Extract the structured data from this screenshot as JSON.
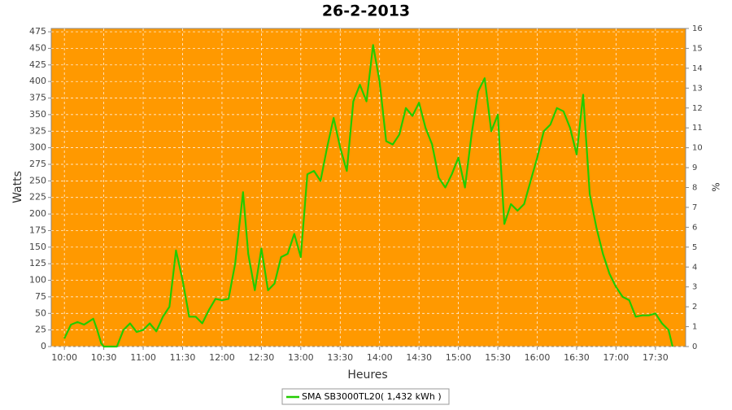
{
  "chart_data": {
    "type": "line",
    "title": "26-2-2013",
    "x_label": "Heures",
    "y_label": "Watts",
    "y2_label": "%",
    "x": [
      "10:00",
      "10:05",
      "10:10",
      "10:15",
      "10:22",
      "10:25",
      "10:28",
      "10:30",
      "10:35",
      "10:40",
      "10:45",
      "10:50",
      "10:55",
      "11:00",
      "11:05",
      "11:10",
      "11:15",
      "11:20",
      "11:25",
      "11:30",
      "11:35",
      "11:40",
      "11:45",
      "11:50",
      "11:55",
      "12:00",
      "12:05",
      "12:10",
      "12:16",
      "12:20",
      "12:25",
      "12:30",
      "12:35",
      "12:40",
      "12:45",
      "12:50",
      "12:55",
      "13:00",
      "13:05",
      "13:10",
      "13:15",
      "13:20",
      "13:25",
      "13:30",
      "13:35",
      "13:40",
      "13:45",
      "13:50",
      "13:55",
      "14:00",
      "14:05",
      "14:10",
      "14:15",
      "14:20",
      "14:25",
      "14:30",
      "14:35",
      "14:40",
      "14:45",
      "14:50",
      "14:55",
      "15:00",
      "15:05",
      "15:10",
      "15:15",
      "15:20",
      "15:25",
      "15:30",
      "15:35",
      "15:40",
      "15:45",
      "15:50",
      "15:55",
      "16:00",
      "16:05",
      "16:10",
      "16:15",
      "16:20",
      "16:25",
      "16:30",
      "16:35",
      "16:40",
      "16:45",
      "16:50",
      "16:55",
      "17:00",
      "17:05",
      "17:10",
      "17:15",
      "17:20",
      "17:25",
      "17:30",
      "17:35",
      "17:40",
      "17:43"
    ],
    "series": [
      {
        "name": "SMA SB3000TL20( 1,432 kWh )",
        "color": "#22cc00",
        "values": [
          12,
          33,
          37,
          33,
          42,
          25,
          5,
          0,
          0,
          0,
          25,
          35,
          22,
          25,
          35,
          23,
          45,
          60,
          145,
          100,
          45,
          45,
          35,
          55,
          72,
          70,
          72,
          125,
          233,
          140,
          85,
          148,
          85,
          95,
          135,
          140,
          170,
          135,
          260,
          265,
          250,
          300,
          345,
          300,
          265,
          370,
          395,
          370,
          455,
          400,
          310,
          305,
          320,
          360,
          348,
          368,
          330,
          305,
          255,
          240,
          260,
          285,
          240,
          320,
          385,
          405,
          325,
          350,
          185,
          215,
          205,
          215,
          250,
          285,
          325,
          335,
          360,
          355,
          330,
          290,
          380,
          230,
          180,
          140,
          110,
          90,
          75,
          70,
          45,
          47,
          47,
          50,
          35,
          25,
          0
        ]
      }
    ],
    "xlim": [
      "09:50",
      "17:53"
    ],
    "xticks": [
      "10:00",
      "10:30",
      "11:00",
      "11:30",
      "12:00",
      "12:30",
      "13:00",
      "13:30",
      "14:00",
      "14:30",
      "15:00",
      "15:30",
      "16:00",
      "16:30",
      "17:00",
      "17:30"
    ],
    "ylim": [
      0,
      480
    ],
    "yticks": [
      0,
      25,
      50,
      75,
      100,
      125,
      150,
      175,
      200,
      225,
      250,
      275,
      300,
      325,
      350,
      375,
      400,
      425,
      450,
      475
    ],
    "y2lim": [
      0,
      16
    ],
    "y2ticks": [
      0,
      1,
      2,
      3,
      4,
      5,
      6,
      7,
      8,
      9,
      10,
      11,
      12,
      13,
      14,
      15,
      16
    ],
    "grid": true,
    "plot_background": "#ff9900",
    "legend": "bottom"
  }
}
